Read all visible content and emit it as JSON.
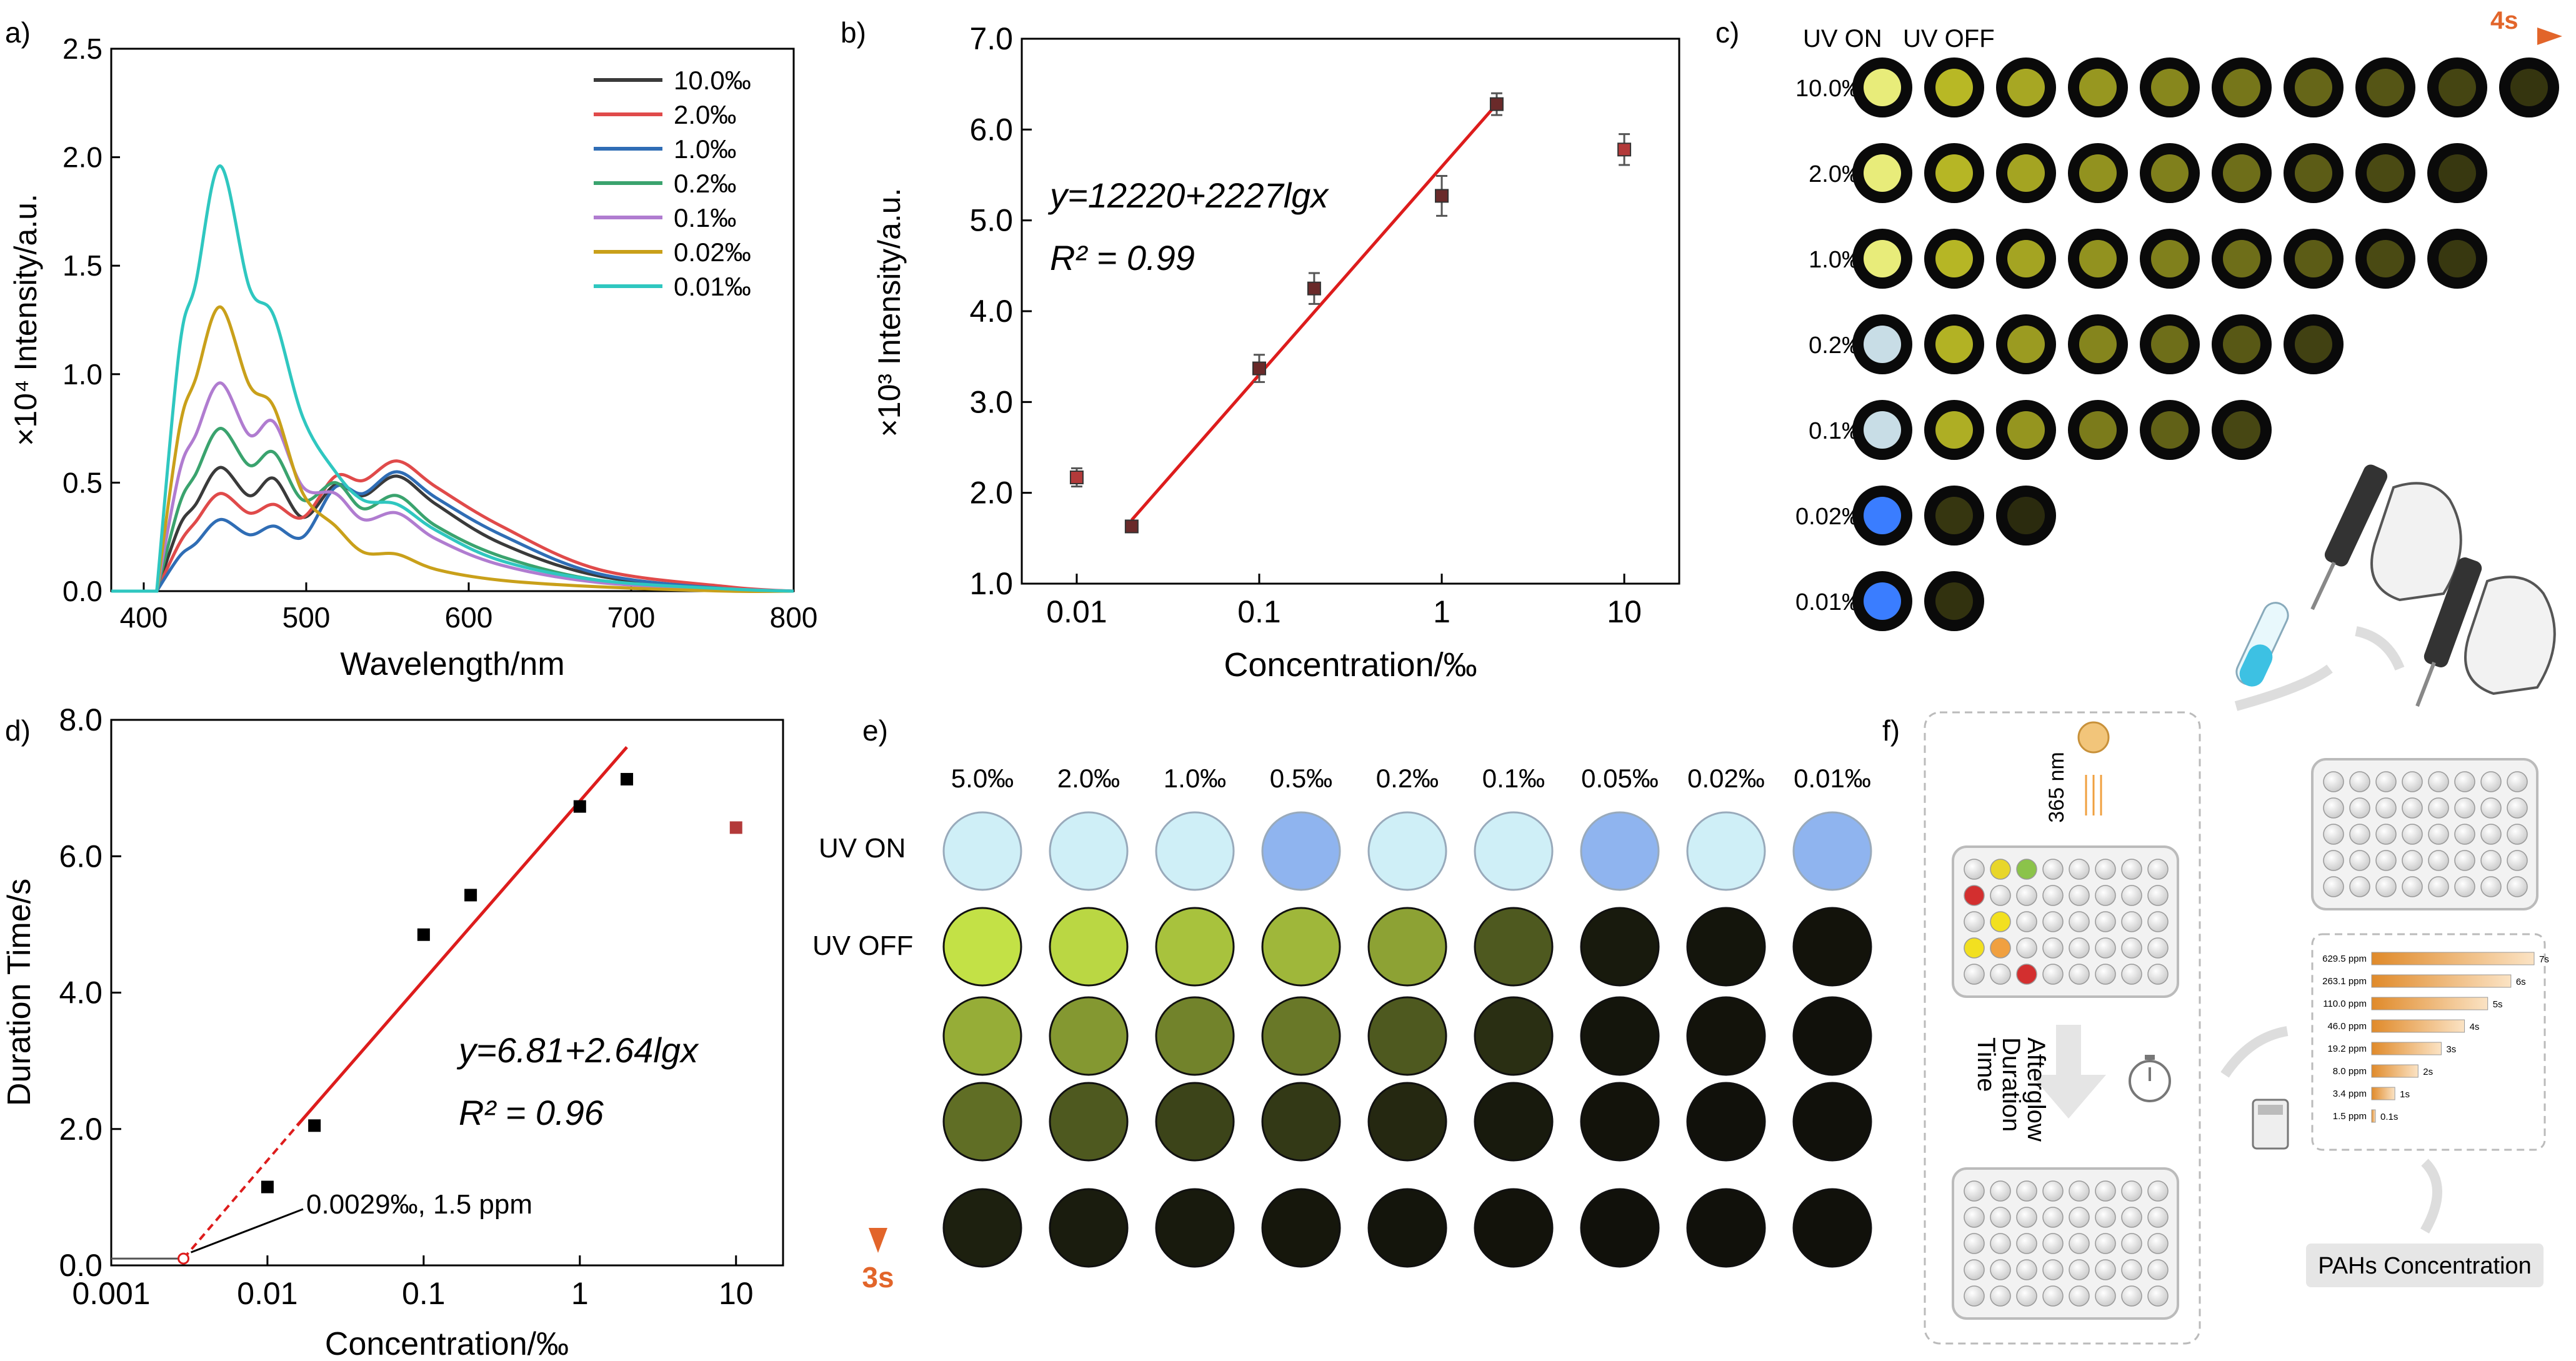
{
  "panel_labels": [
    "a)",
    "b)",
    "c)",
    "d)",
    "e)",
    "f)"
  ],
  "colors": {
    "s10": "#3a3a3a",
    "s2": "#e04a4a",
    "s1": "#2f6db5",
    "s02": "#3aa36e",
    "s01": "#b07cd0",
    "s002": "#c9a01a",
    "s001": "#2fc7c0",
    "fit": "#dd1c1c",
    "outlier": "#b33a3a",
    "arrow_orange": "#e2652a",
    "arrow_blue": "#3a7fd0"
  },
  "chart_data": [
    {
      "type": "line",
      "title": "",
      "xlabel": "Wavelength/nm",
      "ylabel": "×10⁴ Intensity/a.u.",
      "xlim": [
        380,
        800
      ],
      "ylim": [
        0,
        2.5
      ],
      "xticks": [
        "400",
        "500",
        "600",
        "700",
        "800"
      ],
      "yticks": [
        "0.0",
        "0.5",
        "1.0",
        "1.5",
        "2.0",
        "2.5"
      ],
      "peaks_x": [
        408,
        422,
        432,
        447,
        465,
        480,
        498,
        518,
        535,
        556,
        580,
        620,
        680,
        760,
        800
      ],
      "series": [
        {
          "name": "10.0‰",
          "color_key": "s10",
          "values": [
            0,
            0.3,
            0.4,
            0.57,
            0.44,
            0.52,
            0.34,
            0.49,
            0.44,
            0.53,
            0.4,
            0.22,
            0.07,
            0.01,
            0
          ]
        },
        {
          "name": "2.0‰",
          "color_key": "s2",
          "values": [
            0,
            0.22,
            0.32,
            0.45,
            0.36,
            0.4,
            0.34,
            0.53,
            0.51,
            0.6,
            0.48,
            0.3,
            0.1,
            0.02,
            0
          ]
        },
        {
          "name": "1.0‰",
          "color_key": "s1",
          "values": [
            0,
            0.16,
            0.22,
            0.33,
            0.26,
            0.3,
            0.25,
            0.48,
            0.45,
            0.55,
            0.43,
            0.26,
            0.08,
            0.01,
            0
          ]
        },
        {
          "name": "0.2‰",
          "color_key": "s02",
          "values": [
            0,
            0.4,
            0.54,
            0.75,
            0.58,
            0.64,
            0.42,
            0.5,
            0.38,
            0.44,
            0.3,
            0.16,
            0.05,
            0.01,
            0
          ]
        },
        {
          "name": "0.1‰",
          "color_key": "s01",
          "values": [
            0,
            0.55,
            0.72,
            0.96,
            0.72,
            0.78,
            0.48,
            0.45,
            0.33,
            0.36,
            0.24,
            0.12,
            0.04,
            0.01,
            0
          ]
        },
        {
          "name": "0.02‰",
          "color_key": "s002",
          "values": [
            0,
            0.75,
            0.98,
            1.31,
            0.95,
            0.85,
            0.45,
            0.3,
            0.18,
            0.17,
            0.1,
            0.05,
            0.02,
            0,
            0
          ]
        },
        {
          "name": "0.01‰",
          "color_key": "s001",
          "values": [
            0,
            1.12,
            1.42,
            1.96,
            1.4,
            1.27,
            0.8,
            0.55,
            0.42,
            0.4,
            0.28,
            0.14,
            0.05,
            0.01,
            0
          ]
        }
      ]
    },
    {
      "type": "scatter",
      "xlabel": "Concentration/‰",
      "ylabel": "×10³ Intensity/a.u.",
      "xscale": "log",
      "xlim": [
        0.005,
        20
      ],
      "ylim": [
        1.0,
        7.0
      ],
      "xticks": [
        "0.01",
        "0.1",
        "1",
        "10"
      ],
      "xtick_values": [
        0.01,
        0.1,
        1,
        10
      ],
      "yticks": [
        "1.0",
        "2.0",
        "3.0",
        "4.0",
        "5.0",
        "6.0",
        "7.0"
      ],
      "points": [
        {
          "x": 0.01,
          "y": 2.17,
          "err": 0.1,
          "fit": false
        },
        {
          "x": 0.02,
          "y": 1.63,
          "err": 0.06,
          "fit": true
        },
        {
          "x": 0.1,
          "y": 3.37,
          "err": 0.15,
          "fit": true
        },
        {
          "x": 0.2,
          "y": 4.25,
          "err": 0.17,
          "fit": true
        },
        {
          "x": 1,
          "y": 5.27,
          "err": 0.22,
          "fit": true
        },
        {
          "x": 2,
          "y": 6.28,
          "err": 0.12,
          "fit": true
        },
        {
          "x": 10,
          "y": 5.78,
          "err": 0.17,
          "fit": false
        }
      ],
      "fit_line": {
        "x": [
          0.02,
          2
        ],
        "y": [
          1.7,
          6.28
        ]
      },
      "equation": "y=12220+2227lgx",
      "r2": "R² = 0.99"
    },
    {
      "type": "scatter",
      "xlabel": "Concentration/‰",
      "ylabel": "Duration Time/s",
      "xscale": "log",
      "xlim": [
        0.001,
        20
      ],
      "ylim": [
        0,
        8
      ],
      "xticks": [
        "0.001",
        "0.01",
        "0.1",
        "1",
        "10"
      ],
      "xtick_values": [
        0.001,
        0.01,
        0.1,
        1,
        10
      ],
      "yticks": [
        "0.0",
        "2.0",
        "4.0",
        "6.0",
        "8.0"
      ],
      "points": [
        {
          "x": 0.01,
          "y": 1.15,
          "fit": true
        },
        {
          "x": 0.02,
          "y": 2.05,
          "fit": true
        },
        {
          "x": 0.1,
          "y": 4.85,
          "fit": true
        },
        {
          "x": 0.2,
          "y": 5.43,
          "fit": true
        },
        {
          "x": 1,
          "y": 6.73,
          "fit": true
        },
        {
          "x": 2,
          "y": 7.13,
          "fit": true
        },
        {
          "x": 10,
          "y": 6.42,
          "fit": false
        }
      ],
      "fit_line": {
        "x": [
          0.0155,
          2
        ],
        "y": [
          2.05,
          7.6
        ]
      },
      "dashed_line": {
        "x": [
          0.0029,
          0.0155
        ],
        "y": [
          0.1,
          2.05
        ]
      },
      "lod_point": {
        "x": 0.0029,
        "y": 0.1
      },
      "equation": "y=6.81+2.64lgx",
      "r2": "R² = 0.96",
      "annotation": "0.0029‰, 1.5 ppm"
    }
  ],
  "panel_c": {
    "uv_on": "UV ON",
    "uv_off": "UV OFF",
    "time_label": "4s",
    "rows": [
      {
        "label": "10.0‰",
        "count": 10
      },
      {
        "label": "2.0‰",
        "count": 9
      },
      {
        "label": "1.0‰",
        "count": 9
      },
      {
        "label": "0.2‰",
        "count": 7
      },
      {
        "label": "0.1‰",
        "count": 6
      },
      {
        "label": "0.02‰",
        "count": 3
      },
      {
        "label": "0.01‰",
        "count": 2
      }
    ]
  },
  "panel_e": {
    "columns": [
      "5.0‰",
      "2.0‰",
      "1.0‰",
      "0.5‰",
      "0.2‰",
      "0.1‰",
      "0.05‰",
      "0.02‰",
      "0.01‰"
    ],
    "uv_on": "UV ON",
    "uv_off": "UV OFF",
    "time_label": "3s",
    "glow": [
      [
        1.0,
        0.95,
        0.85,
        0.8,
        0.7,
        0.35,
        0.05,
        0.03,
        0.02
      ],
      [
        0.75,
        0.65,
        0.55,
        0.5,
        0.35,
        0.15,
        0.03,
        0.02,
        0.01
      ],
      [
        0.45,
        0.35,
        0.25,
        0.2,
        0.12,
        0.05,
        0.02,
        0.01,
        0.01
      ],
      [
        0.08,
        0.06,
        0.05,
        0.04,
        0.03,
        0.02,
        0.01,
        0.01,
        0.01
      ]
    ]
  },
  "panel_f": {
    "wavelength": "365 nm",
    "afterglow": [
      "Afterglow",
      "Duration",
      "Time"
    ],
    "result": "PAHs Concentration",
    "bar_labels": [
      "629.5 ppm",
      "263.1 ppm",
      "110.0 ppm",
      "46.0 ppm",
      "19.2 ppm",
      "8.0 ppm",
      "3.4 ppm",
      "1.5 ppm"
    ],
    "bar_times": [
      "7s",
      "6s",
      "5s",
      "4s",
      "3s",
      "2s",
      "1s",
      "0.1s"
    ],
    "bar_values": [
      7,
      6,
      5,
      4,
      3,
      2,
      1,
      0.1
    ]
  }
}
